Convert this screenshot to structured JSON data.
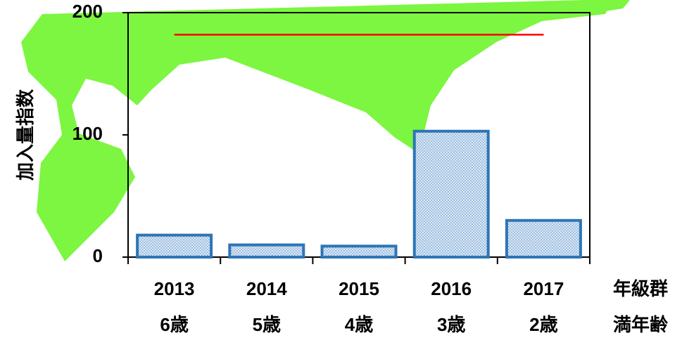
{
  "chart_data": {
    "type": "bar",
    "categories": [
      "2013",
      "2014",
      "2015",
      "2016",
      "2017"
    ],
    "ages": [
      "6歳",
      "5歳",
      "4歳",
      "3歳",
      "2歳"
    ],
    "values": [
      18,
      10,
      9,
      103,
      30
    ],
    "color": "#2e75b6",
    "ylim": [
      0,
      200
    ],
    "yticks": [
      0,
      100,
      200
    ],
    "y_label": "加入量指数",
    "x_labels": [
      "年級群",
      "満年齢"
    ],
    "reference_line": {
      "value": 182,
      "color": "#ff0000"
    }
  }
}
